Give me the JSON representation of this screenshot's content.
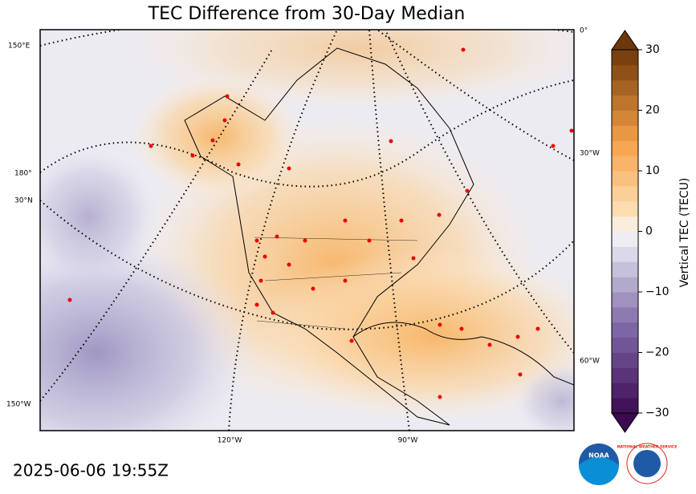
{
  "map": {
    "title": "TEC Difference from 30-Day Median",
    "timestamp": "2025-06-06 19:55Z",
    "graticule_labels": [
      "150°E",
      "180°",
      "30°N",
      "150°W",
      "120°W",
      "90°W",
      "0°",
      "30°W",
      "60°W"
    ],
    "colorbar": {
      "label": "Vertical TEC (TECU)",
      "clim": [
        -30,
        30
      ],
      "ticks": [
        {
          "value": -30,
          "label": "−30"
        },
        {
          "value": -20,
          "label": "−20"
        },
        {
          "value": -10,
          "label": "−10"
        },
        0,
        10,
        20,
        30
      ]
    },
    "logos": {
      "noaa": "NOAA",
      "nws": "NATIONAL WEATHER SERVICE"
    }
  }
}
